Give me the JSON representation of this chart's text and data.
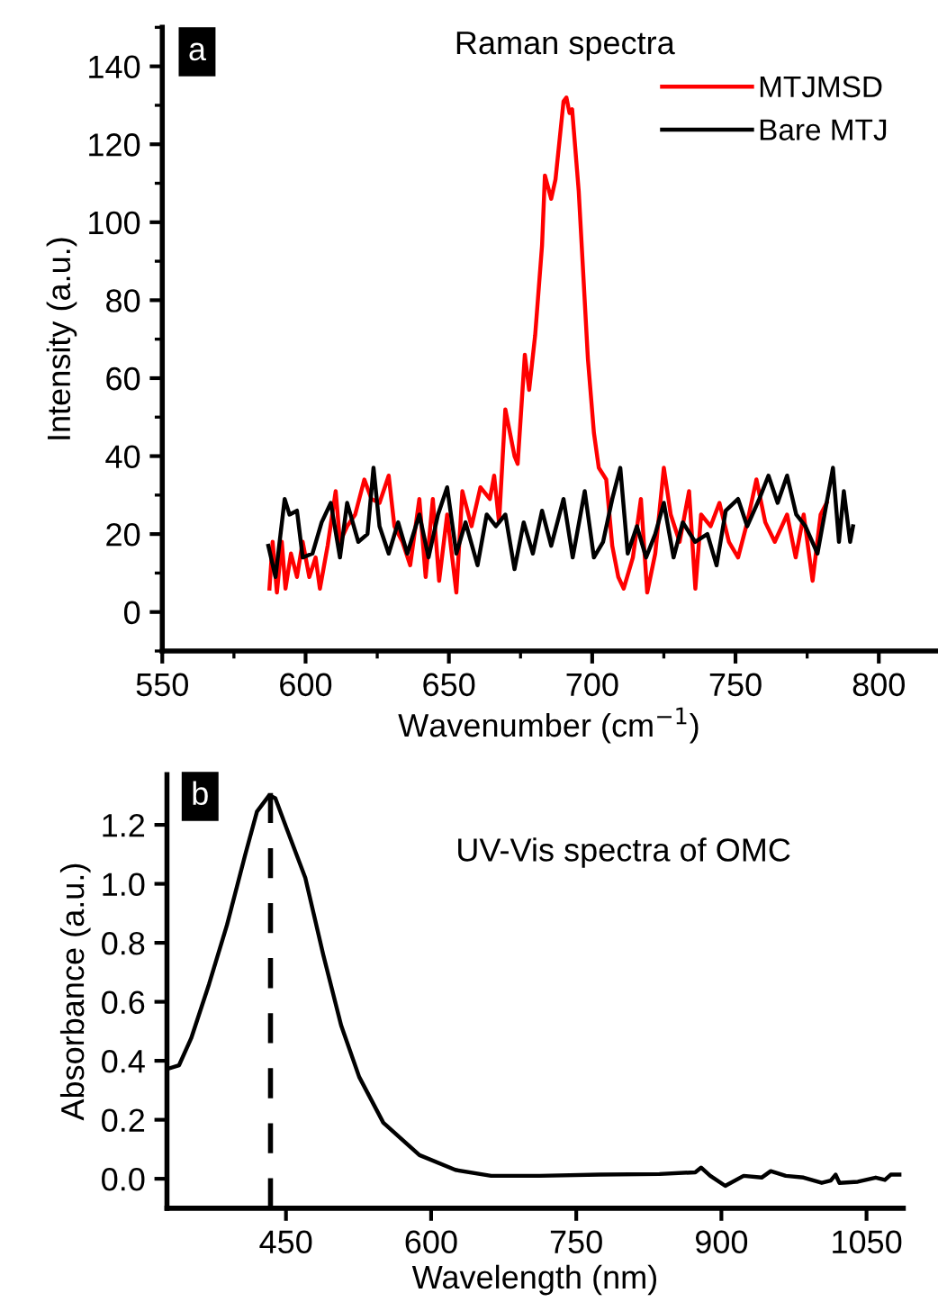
{
  "chart_data": [
    {
      "type": "line",
      "title": "Raman spectra",
      "xlabel": "Wavenumber (cm$^{−1}$)",
      "ylabel": "Intensity (a.u.)",
      "annotations": [
        "a"
      ],
      "xlim": [
        550,
        820
      ],
      "ylim": [
        -10,
        150
      ],
      "xticks": [
        550,
        600,
        650,
        700,
        750,
        800
      ],
      "yticks": [
        0,
        20,
        40,
        60,
        80,
        100,
        120,
        140
      ],
      "grid": false,
      "legend": "top right",
      "series": [
        {
          "name": "MTJMSD",
          "color": "#ff0000",
          "x": [
            587.4,
            588.5,
            590,
            591.7,
            593,
            594.9,
            597,
            599,
            601.3,
            603.5,
            605,
            607.7,
            610.5,
            612,
            614.5,
            617.3,
            620.5,
            623,
            625.8,
            629,
            631,
            633.8,
            636.5,
            639.7,
            641.9,
            644.4,
            646.6,
            649.4,
            652.6,
            654.7,
            657.9,
            661,
            664.3,
            665.8,
            667.5,
            669.7,
            672.9,
            674,
            676.5,
            678,
            680.1,
            682.5,
            683.5,
            685.7,
            687.2,
            690,
            691,
            692.1,
            693,
            695.3,
            698.5,
            700.6,
            702.3,
            704.9,
            707,
            709.1,
            711,
            714.2,
            717,
            719.2,
            722,
            725,
            727.4,
            730.5,
            733.8,
            736,
            738,
            741.3,
            744.4,
            747.7,
            750.9,
            754.1,
            757.3,
            760.4,
            763.7,
            768,
            771,
            773.8,
            776.9,
            779.7,
            781.8
          ],
          "values": [
            6,
            18,
            5,
            18,
            6,
            15,
            9,
            18,
            9,
            14,
            6,
            17,
            31,
            18,
            22,
            25,
            34,
            29,
            28,
            35,
            22,
            18,
            12,
            29,
            9,
            29,
            8,
            25,
            5,
            31,
            22,
            32,
            29,
            35,
            23,
            52,
            40,
            38,
            66,
            57,
            71,
            94,
            112,
            106,
            111,
            131,
            132,
            128,
            129,
            108,
            65,
            46,
            37,
            34,
            17,
            9,
            6,
            14,
            29,
            5,
            15,
            37,
            25,
            18,
            31,
            6,
            25,
            22,
            28,
            18,
            14,
            23,
            34,
            23,
            18,
            25,
            14,
            25,
            8,
            25,
            28
          ]
        },
        {
          "name": "Bare MTJ",
          "color": "#000000",
          "x": [
            587,
            589.5,
            592.7,
            594.4,
            597,
            599,
            602.4,
            605.6,
            608.8,
            612,
            614.5,
            618.4,
            621.6,
            623.7,
            625.8,
            629,
            632.3,
            635.5,
            639.7,
            642.9,
            646.2,
            649.4,
            652.6,
            655.8,
            660,
            663.2,
            666.4,
            669.7,
            672.9,
            676.1,
            679.3,
            682.5,
            685.7,
            690,
            693.2,
            697.4,
            700.6,
            703.8,
            707,
            709.8,
            712.4,
            715.6,
            718.8,
            722,
            725,
            728.4,
            731.6,
            735.9,
            740.2,
            743.4,
            746.6,
            750.9,
            754.1,
            758.3,
            761.5,
            764.7,
            768,
            771.2,
            774.4,
            778.6,
            784,
            786.1,
            787.8,
            790,
            791
          ],
          "values": [
            17,
            9,
            29,
            25,
            26,
            14,
            15,
            23,
            28,
            14,
            28,
            18,
            20,
            37,
            22,
            15,
            23,
            15,
            25,
            14,
            25,
            32,
            15,
            23,
            12,
            25,
            22,
            25,
            11,
            23,
            15,
            26,
            17,
            29,
            14,
            31,
            14,
            18,
            29,
            37,
            15,
            22,
            14,
            20,
            28,
            14,
            23,
            18,
            20,
            12,
            26,
            29,
            22,
            29,
            35,
            28,
            35,
            25,
            22,
            15,
            37,
            18,
            31,
            18,
            22
          ]
        }
      ]
    },
    {
      "type": "line",
      "title": "UV-Vis spectra of OMC",
      "xlabel": "Wavelength (nm)",
      "ylabel": "Absorbance (a.u.)",
      "annotations": [
        "b"
      ],
      "xlim": [
        327,
        1088
      ],
      "ylim": [
        -0.1,
        1.37
      ],
      "xticks": [
        450,
        600,
        750,
        900,
        1050
      ],
      "yticks": [
        {
          "value": 0,
          "label": "0.0"
        },
        0.2,
        0.4,
        0.6,
        0.8,
        {
          "value": 1,
          "label": "1.0"
        },
        1.2
      ],
      "grid": false,
      "ref_lines": [
        {
          "axis": "x",
          "value": 434,
          "label": null,
          "color": "#000000",
          "line_style": "dashed"
        }
      ],
      "series": [
        {
          "color": "#000000",
          "x": [
            330,
            339.5,
            352,
            370.5,
            389,
            408,
            420,
            432.6,
            439,
            451,
            470,
            488.5,
            507,
            525.7,
            550.6,
            588,
            625,
            662,
            712,
            774,
            836,
            873,
            879,
            888.5,
            904,
            923,
            941.6,
            951,
            966.5,
            985,
            1003.7,
            1013,
            1018,
            1022,
            1041,
            1059.5,
            1069,
            1075,
            1084
          ],
          "values": [
            0.375,
            0.385,
            0.476,
            0.66,
            0.86,
            1.1,
            1.245,
            1.3,
            1.29,
            1.185,
            1.02,
            0.76,
            0.52,
            0.345,
            0.19,
            0.08,
            0.03,
            0.01,
            0.01,
            0.014,
            0.016,
            0.022,
            0.038,
            0.01,
            -0.024,
            0.01,
            0.004,
            0.026,
            0.01,
            0.004,
            -0.014,
            -0.006,
            0.014,
            -0.014,
            -0.01,
            0.004,
            -0.004,
            0.014,
            0.014
          ]
        }
      ]
    }
  ]
}
